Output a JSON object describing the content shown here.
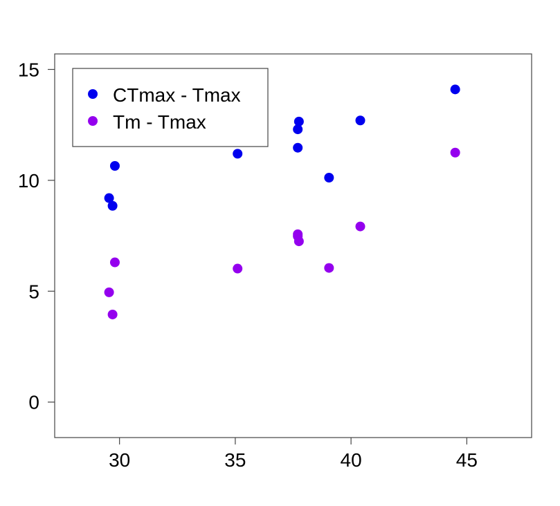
{
  "chart_data": {
    "type": "scatter",
    "title": "",
    "xlabel": "",
    "ylabel": "",
    "xlim": [
      27.2,
      47.8
    ],
    "ylim": [
      -1.6,
      15.7
    ],
    "x_ticks": [
      30,
      35,
      40,
      45
    ],
    "y_ticks": [
      0,
      5,
      10,
      15
    ],
    "grid": false,
    "legend_position": "top-left",
    "series": [
      {
        "name": "CTmax - Tmax",
        "color": "#0000ee",
        "points": [
          {
            "x": 29.55,
            "y": 9.2
          },
          {
            "x": 29.7,
            "y": 8.85
          },
          {
            "x": 29.8,
            "y": 10.65
          },
          {
            "x": 35.1,
            "y": 11.2
          },
          {
            "x": 37.7,
            "y": 11.47
          },
          {
            "x": 37.7,
            "y": 12.3
          },
          {
            "x": 37.75,
            "y": 12.65
          },
          {
            "x": 39.05,
            "y": 10.12
          },
          {
            "x": 40.4,
            "y": 12.7
          },
          {
            "x": 44.5,
            "y": 14.1
          }
        ]
      },
      {
        "name": "Tm - Tmax",
        "color": "#9400ee",
        "points": [
          {
            "x": 29.55,
            "y": 4.95
          },
          {
            "x": 29.7,
            "y": 3.95
          },
          {
            "x": 29.8,
            "y": 6.3
          },
          {
            "x": 35.1,
            "y": 6.02
          },
          {
            "x": 37.7,
            "y": 7.48
          },
          {
            "x": 37.7,
            "y": 7.57
          },
          {
            "x": 37.75,
            "y": 7.25
          },
          {
            "x": 39.05,
            "y": 6.05
          },
          {
            "x": 40.4,
            "y": 7.92
          },
          {
            "x": 44.5,
            "y": 11.25
          }
        ]
      }
    ]
  }
}
